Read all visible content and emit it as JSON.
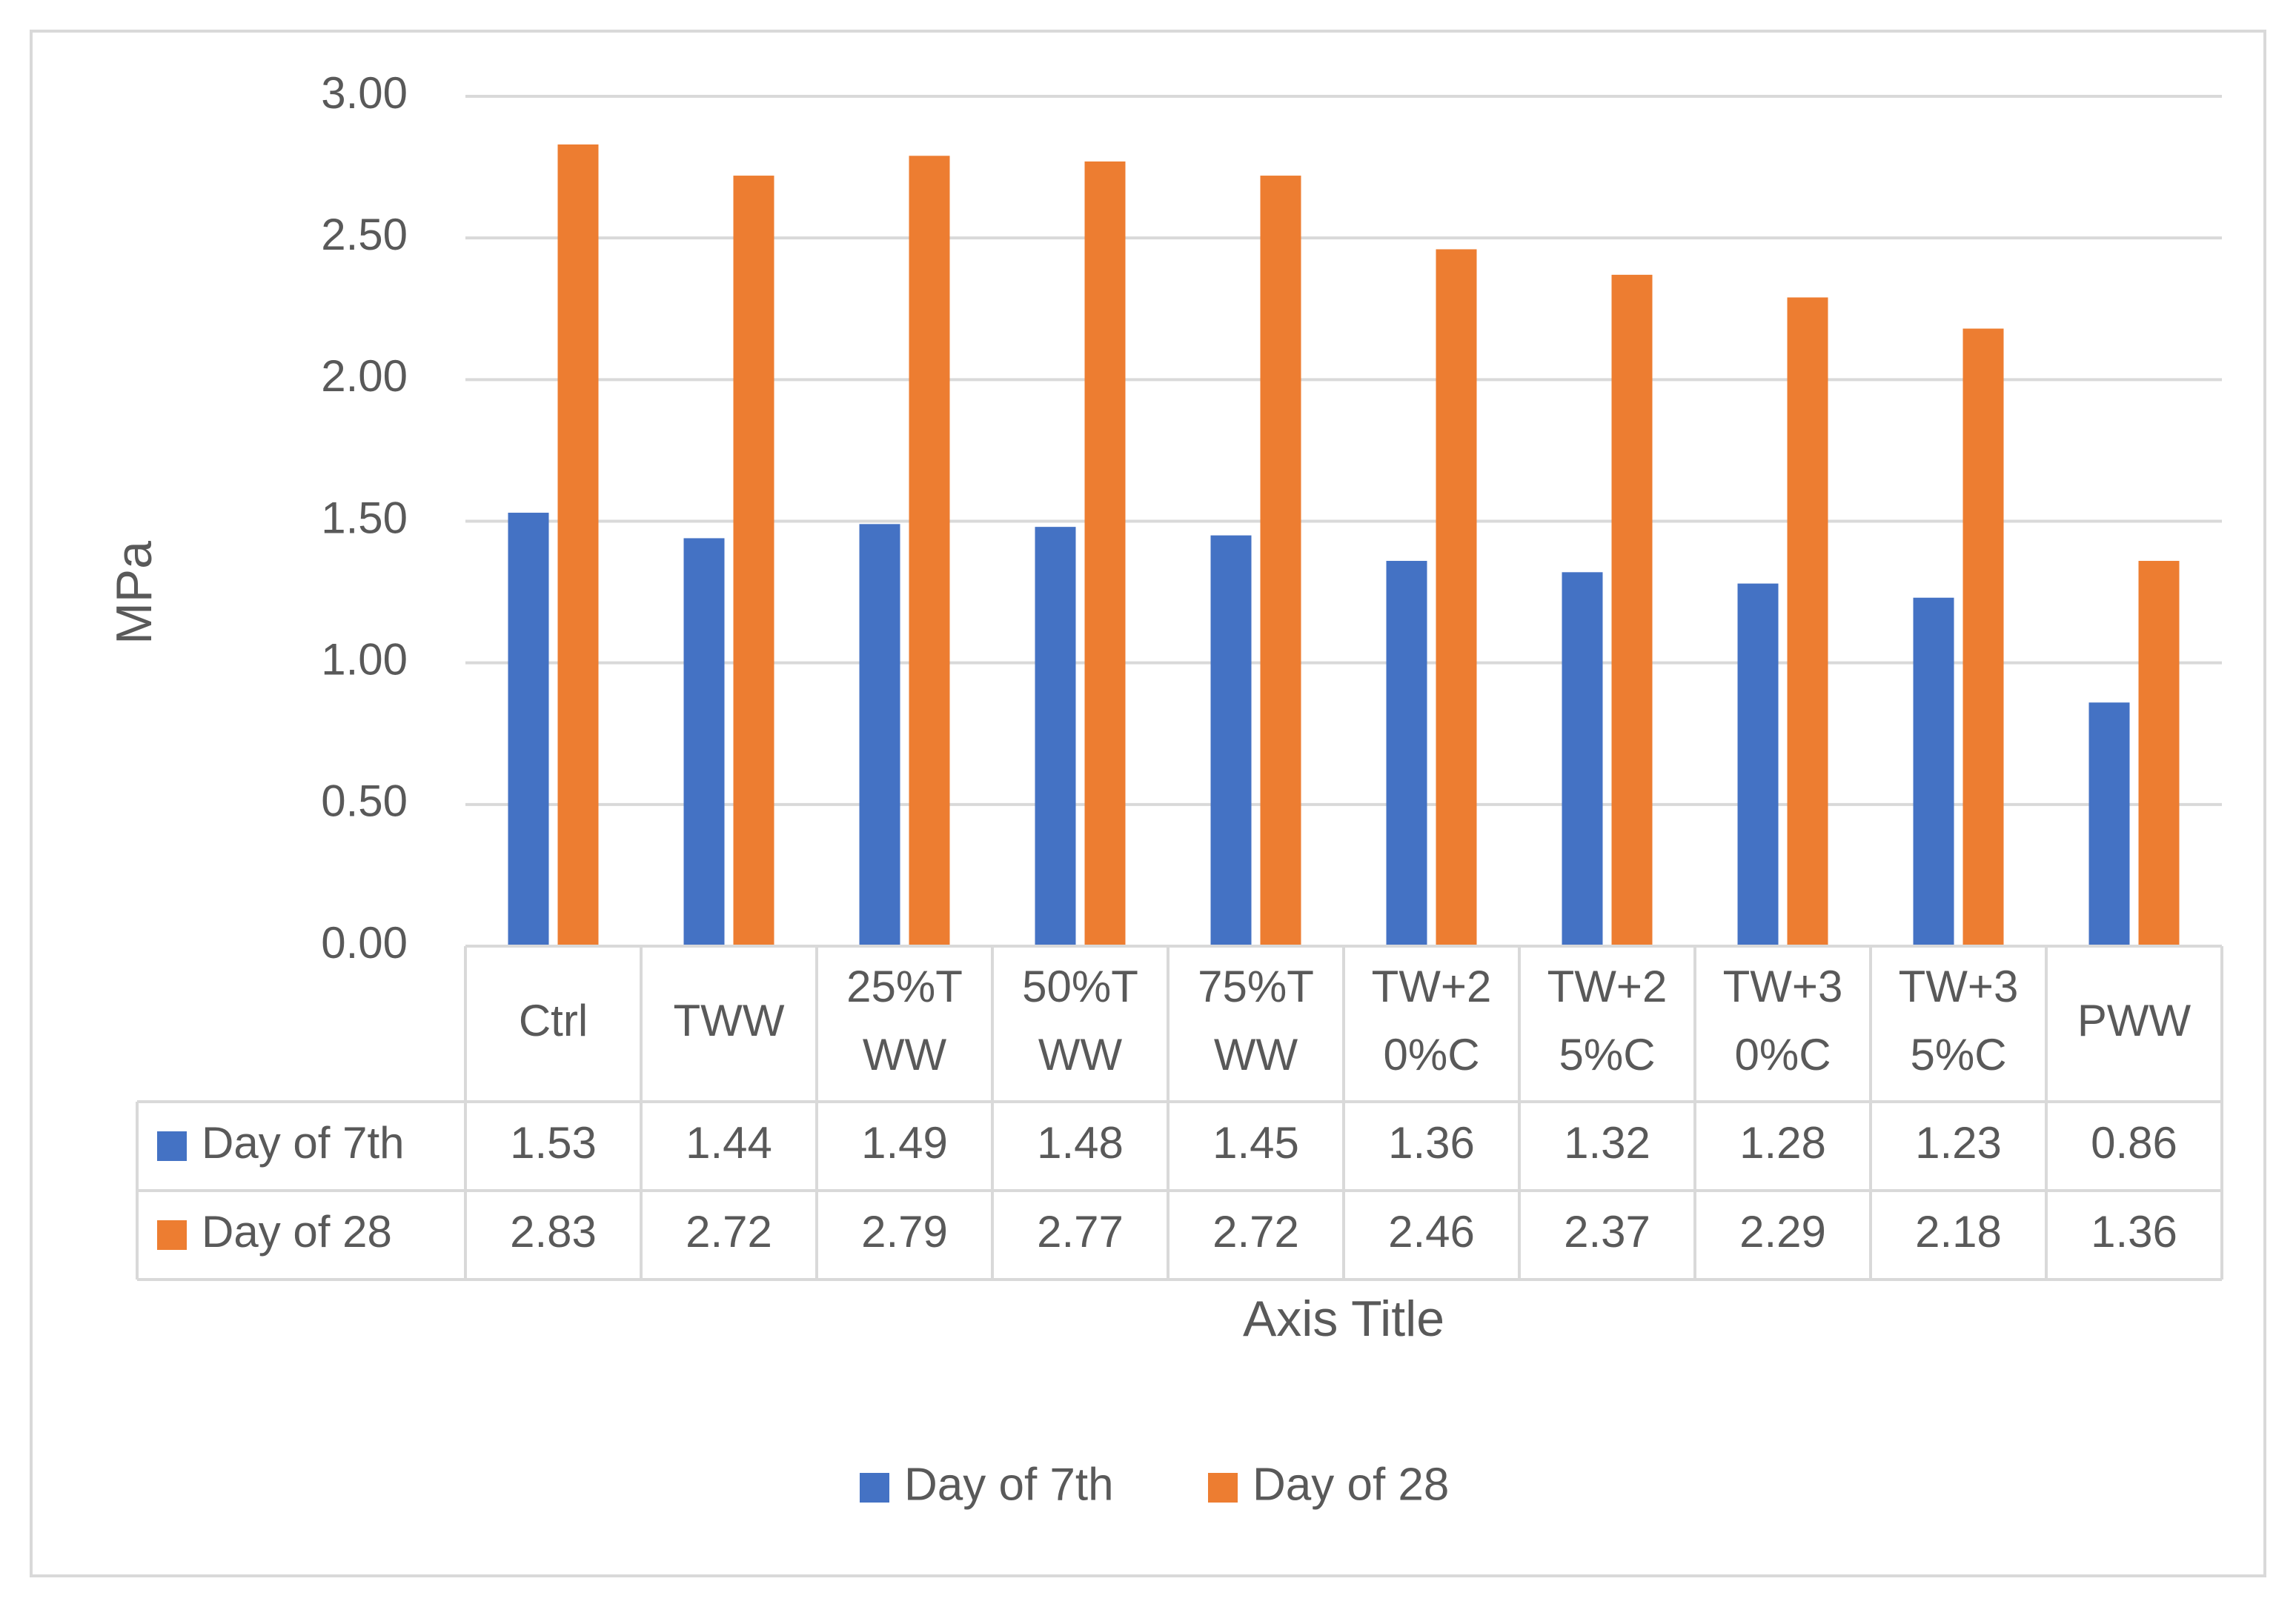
{
  "chart_data": {
    "type": "bar",
    "title": "",
    "xlabel": "Axis Title",
    "ylabel": "MPa",
    "ylim": [
      0,
      3
    ],
    "yticks": [
      "0.00",
      "0.50",
      "1.00",
      "1.50",
      "2.00",
      "2.50",
      "3.00"
    ],
    "grid": true,
    "categories": [
      [
        "Ctrl"
      ],
      [
        "TWW"
      ],
      [
        "25%T",
        "WW"
      ],
      [
        "50%T",
        "WW"
      ],
      [
        "75%T",
        "WW"
      ],
      [
        "TW+2",
        "0%C"
      ],
      [
        "TW+2",
        "5%C"
      ],
      [
        "TW+3",
        "0%C"
      ],
      [
        "TW+3",
        "5%C"
      ],
      [
        "PWW"
      ]
    ],
    "series": [
      {
        "name": "Day of 7th",
        "color": "#4472c4",
        "values": [
          1.53,
          1.44,
          1.49,
          1.48,
          1.45,
          1.36,
          1.32,
          1.28,
          1.23,
          0.86
        ],
        "labels": [
          "1.53",
          "1.44",
          "1.49",
          "1.48",
          "1.45",
          "1.36",
          "1.32",
          "1.28",
          "1.23",
          "0.86"
        ]
      },
      {
        "name": "Day of 28",
        "color": "#ed7d31",
        "values": [
          2.83,
          2.72,
          2.79,
          2.77,
          2.72,
          2.46,
          2.37,
          2.29,
          2.18,
          1.36
        ],
        "labels": [
          "2.83",
          "2.72",
          "2.79",
          "2.77",
          "2.72",
          "2.46",
          "2.37",
          "2.29",
          "2.18",
          "1.36"
        ]
      }
    ],
    "data_table": true,
    "legend": "bottom"
  }
}
